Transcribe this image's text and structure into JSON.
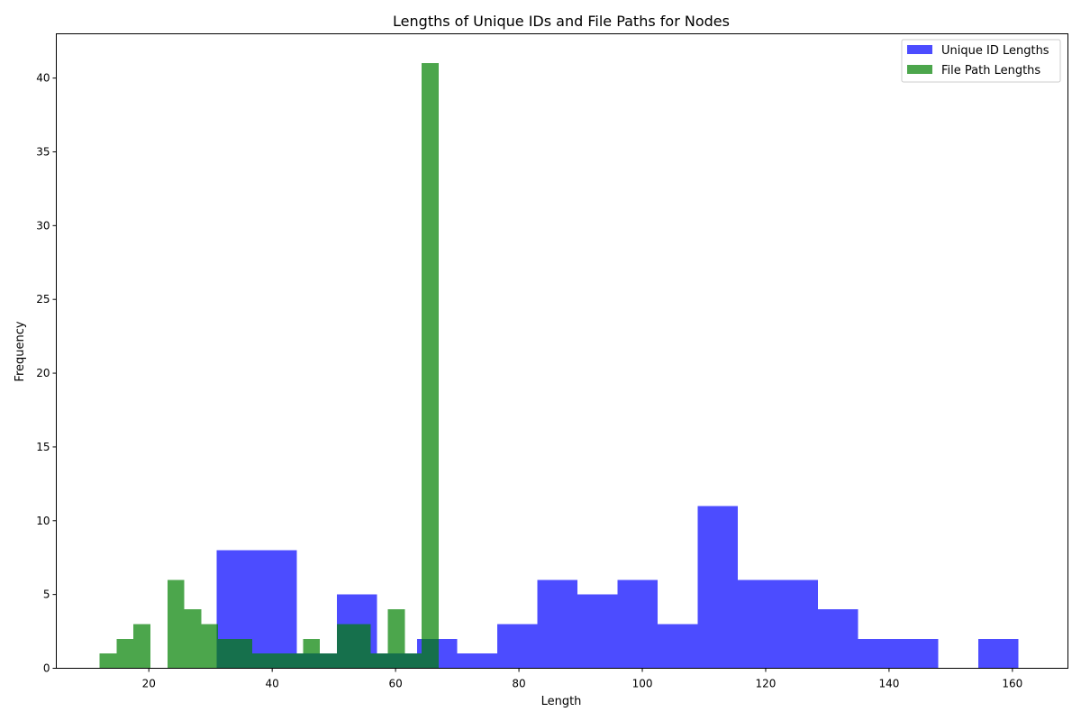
{
  "chart_data": {
    "type": "bar",
    "title": "Lengths of Unique IDs and File Paths for Nodes",
    "xlabel": "Length",
    "ylabel": "Frequency",
    "xlim": [
      5,
      169
    ],
    "ylim": [
      0,
      43
    ],
    "x_ticks": [
      20,
      40,
      60,
      80,
      100,
      120,
      140,
      160
    ],
    "y_ticks": [
      0,
      5,
      10,
      15,
      20,
      25,
      30,
      35,
      40
    ],
    "grid": false,
    "legend_position": "top-right",
    "series": [
      {
        "name": "Unique ID Lengths",
        "color": "#0000ff",
        "opacity": 0.7,
        "bins": [
          {
            "x0": 31,
            "x1": 37.5,
            "value": 8
          },
          {
            "x0": 37.5,
            "x1": 44,
            "value": 8
          },
          {
            "x0": 44,
            "x1": 50.5,
            "value": 1
          },
          {
            "x0": 50.5,
            "x1": 57,
            "value": 5
          },
          {
            "x0": 57,
            "x1": 63.5,
            "value": 1
          },
          {
            "x0": 63.5,
            "x1": 70,
            "value": 2
          },
          {
            "x0": 70,
            "x1": 76.5,
            "value": 1
          },
          {
            "x0": 76.5,
            "x1": 83,
            "value": 3
          },
          {
            "x0": 83,
            "x1": 89.5,
            "value": 6
          },
          {
            "x0": 89.5,
            "x1": 96,
            "value": 5
          },
          {
            "x0": 96,
            "x1": 102.5,
            "value": 6
          },
          {
            "x0": 102.5,
            "x1": 109,
            "value": 3
          },
          {
            "x0": 109,
            "x1": 115.5,
            "value": 11
          },
          {
            "x0": 115.5,
            "x1": 122,
            "value": 6
          },
          {
            "x0": 122,
            "x1": 128.5,
            "value": 6
          },
          {
            "x0": 128.5,
            "x1": 135,
            "value": 4
          },
          {
            "x0": 135,
            "x1": 141.5,
            "value": 2
          },
          {
            "x0": 141.5,
            "x1": 148,
            "value": 2
          },
          {
            "x0": 148,
            "x1": 154.5,
            "value": 0
          },
          {
            "x0": 154.5,
            "x1": 161,
            "value": 2
          }
        ]
      },
      {
        "name": "File Path Lengths",
        "color": "#008000",
        "opacity": 0.7,
        "bins": [
          {
            "x0": 12,
            "x1": 14.75,
            "value": 1
          },
          {
            "x0": 14.75,
            "x1": 17.5,
            "value": 2
          },
          {
            "x0": 17.5,
            "x1": 20.25,
            "value": 3
          },
          {
            "x0": 20.25,
            "x1": 23,
            "value": 0
          },
          {
            "x0": 23,
            "x1": 25.75,
            "value": 6
          },
          {
            "x0": 25.75,
            "x1": 28.5,
            "value": 4
          },
          {
            "x0": 28.5,
            "x1": 31.25,
            "value": 3
          },
          {
            "x0": 31.25,
            "x1": 34,
            "value": 2
          },
          {
            "x0": 34,
            "x1": 36.75,
            "value": 2
          },
          {
            "x0": 36.75,
            "x1": 39.5,
            "value": 1
          },
          {
            "x0": 39.5,
            "x1": 42.25,
            "value": 1
          },
          {
            "x0": 42.25,
            "x1": 45,
            "value": 1
          },
          {
            "x0": 45,
            "x1": 47.75,
            "value": 2
          },
          {
            "x0": 47.75,
            "x1": 50.5,
            "value": 1
          },
          {
            "x0": 50.5,
            "x1": 53.25,
            "value": 3
          },
          {
            "x0": 53.25,
            "x1": 56,
            "value": 3
          },
          {
            "x0": 56,
            "x1": 58.75,
            "value": 1
          },
          {
            "x0": 58.75,
            "x1": 61.5,
            "value": 4
          },
          {
            "x0": 61.5,
            "x1": 64.25,
            "value": 1
          },
          {
            "x0": 64.25,
            "x1": 67,
            "value": 41
          }
        ]
      }
    ]
  }
}
